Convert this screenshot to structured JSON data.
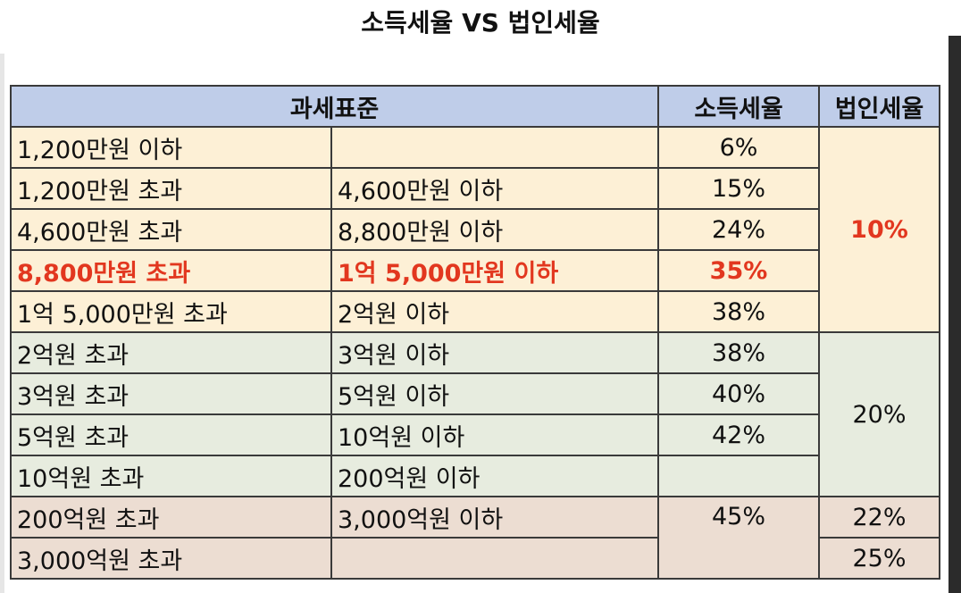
{
  "title": "소득세율 VS 법인세율",
  "headers": {
    "base": "과세표준",
    "income": "소득세율",
    "corp": "법인세율"
  },
  "rows": [
    {
      "from": "1,200만원 이하",
      "to": "",
      "income": "6%"
    },
    {
      "from": "1,200만원 초과",
      "to": "4,600만원 이하",
      "income": "15%"
    },
    {
      "from": "4,600만원 초과",
      "to": "8,800만원 이하",
      "income": "24%"
    },
    {
      "from": "8,800만원 초과",
      "to": "1억 5,000만원 이하",
      "income": "35%"
    },
    {
      "from": "1억 5,000만원 초과",
      "to": "2억원 이하",
      "income": "38%"
    },
    {
      "from": "2억원 초과",
      "to": "3억원 이하",
      "income": "38%"
    },
    {
      "from": "3억원 초과",
      "to": "5억원 이하",
      "income": "40%"
    },
    {
      "from": "5억원 초과",
      "to": "10억원 이하",
      "income": "42%"
    },
    {
      "from": "10억원 초과",
      "to": "200억원 이하",
      "income": ""
    },
    {
      "from": "200억원 초과",
      "to": "3,000억원 이하",
      "income": "45%"
    },
    {
      "from": "3,000억원 초과",
      "to": "",
      "income": ""
    }
  ],
  "corp_rates": {
    "band1": "10%",
    "band2": "20%",
    "band3": "22%",
    "band4": "25%"
  },
  "colors": {
    "header": "#bfcde9",
    "band1": "#fdf0d6",
    "band2": "#e7ecdf",
    "band3": "#ecddd2",
    "highlight": "#e2371f"
  }
}
